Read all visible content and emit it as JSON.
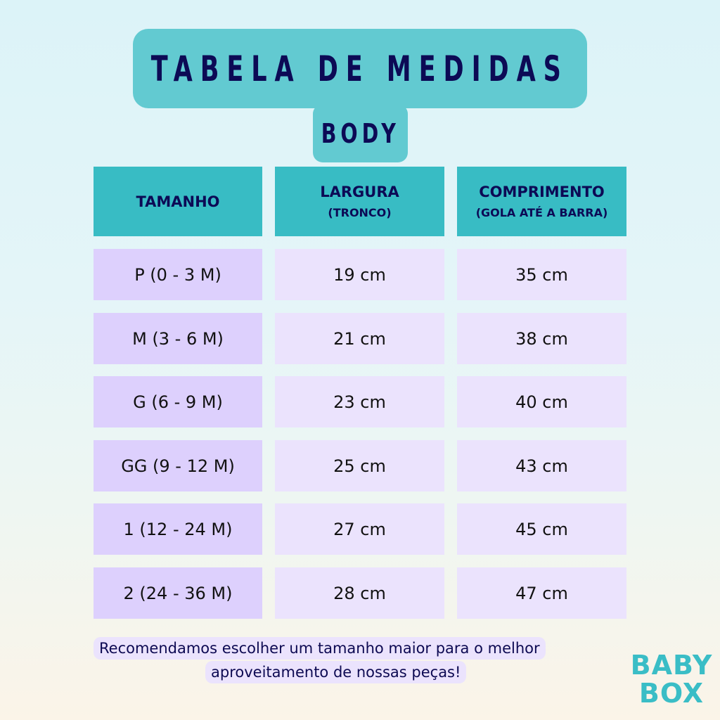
{
  "title": "Tabela de Medidas",
  "subtitle": "Body",
  "headers": [
    {
      "label": "TAMANHO",
      "sub": ""
    },
    {
      "label": "LARGURA",
      "sub": "(TRONCO)"
    },
    {
      "label": "COMPRIMENTO",
      "sub": "(GOLA ATÉ A BARRA)"
    }
  ],
  "rows": [
    {
      "size": "P  (0 - 3 M)",
      "width": "19 cm",
      "length": "35 cm"
    },
    {
      "size": "M  (3 - 6 M)",
      "width": "21 cm",
      "length": "38 cm"
    },
    {
      "size": "G  (6 - 9 M)",
      "width": "23 cm",
      "length": "40 cm"
    },
    {
      "size": "GG  (9 - 12 M)",
      "width": "25 cm",
      "length": "43 cm"
    },
    {
      "size": "1  (12 - 24 M)",
      "width": "27 cm",
      "length": "45 cm"
    },
    {
      "size": "2  (24 - 36 M)",
      "width": "28 cm",
      "length": "47 cm"
    }
  ],
  "note": {
    "line1": "Recomendamos escolher um tamanho maior para o melhor",
    "line2": "aproveitamento de nossas peças!"
  },
  "logo": {
    "line1": "BABY",
    "line2": "BOX"
  },
  "colors": {
    "header": "#38bcc4",
    "title_box": "#62cad1",
    "size_cell": "#ddd0fd",
    "value_cell": "#ebe3fd",
    "text": "#0c0a55"
  }
}
